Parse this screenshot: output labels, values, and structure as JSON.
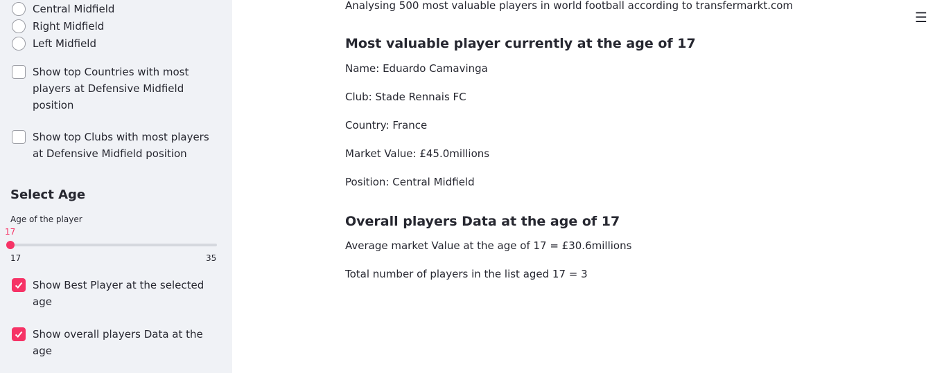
{
  "sidebar": {
    "radios": [
      {
        "label": "Central Midfield"
      },
      {
        "label": "Right Midfield"
      },
      {
        "label": "Left Midfield"
      }
    ],
    "checkbox_countries": {
      "label": "Show top Countries with most players at Defensive Midfield position",
      "checked": false
    },
    "checkbox_clubs": {
      "label": "Show top Clubs with most players at Defensive Midfield position",
      "checked": false
    },
    "age_section": {
      "title": "Select Age",
      "slider_label": "Age of the player",
      "value": "17",
      "min": "17",
      "max": "35",
      "fraction": 0
    },
    "checkbox_best_player": {
      "label": "Show Best Player at the selected age",
      "checked": true
    },
    "checkbox_overall": {
      "label": "Show overall players Data at the age",
      "checked": true
    }
  },
  "main": {
    "intro": "Analysing 500 most valuable players in world football according to transfermarkt.com",
    "best_player": {
      "heading": "Most valuable player currently at the age of 17",
      "name": "Name: Eduardo Camavinga",
      "club": "Club: Stade Rennais FC",
      "country": "Country: France",
      "market_value": "Market Value: £45.0millions",
      "position": "Position: Central Midfield"
    },
    "overall": {
      "heading": "Overall players Data at the age of 17",
      "average": "Average market Value at the age of 17 = £30.6millions",
      "total": "Total number of players in the list aged 17 = 3"
    },
    "menu_icon": "hamburger-menu-icon"
  },
  "colors": {
    "accent": "#f63366",
    "sidebar_bg": "#f0f2f6",
    "text": "#262730"
  }
}
